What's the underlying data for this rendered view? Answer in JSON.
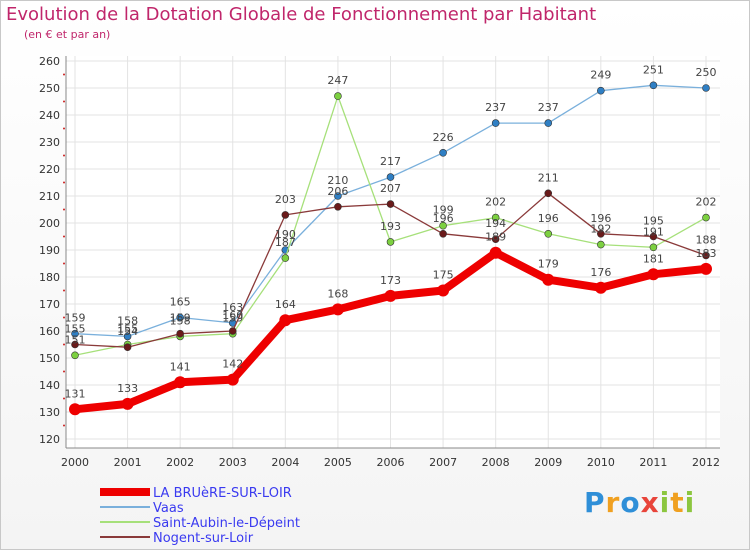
{
  "title": "Evolution de la Dotation Globale de Fonctionnement par Habitant",
  "subtitle": "(en € et par an)",
  "logo": {
    "text": "Proxiti",
    "colors": [
      "#2f8fd8",
      "#f0a020",
      "#2f8fd8",
      "#e8443a",
      "#8cc63f",
      "#f0a020",
      "#8cc63f"
    ]
  },
  "chart_data": {
    "type": "line",
    "title": "Evolution de la Dotation Globale de Fonctionnement par Habitant",
    "subtitle": "(en € et par an)",
    "x": [
      "2000",
      "2001",
      "2002",
      "2003",
      "2004",
      "2005",
      "2006",
      "2007",
      "2008",
      "2009",
      "2010",
      "2011",
      "2012"
    ],
    "ylim": [
      120,
      260
    ],
    "yticks": [
      120,
      130,
      140,
      150,
      160,
      170,
      180,
      190,
      200,
      210,
      220,
      230,
      240,
      250,
      260
    ],
    "grid": true,
    "legend": "bottom-left",
    "series": [
      {
        "name": "LA BRUèRE-SUR-LOIR",
        "color": "#ee0000",
        "marker": "#ee0000",
        "values": [
          131,
          133,
          141,
          142,
          164,
          168,
          173,
          175,
          189,
          179,
          176,
          181,
          183
        ],
        "labels": [
          "131",
          "133",
          "141",
          "142",
          "164",
          "168",
          "173",
          "175",
          "189",
          "179",
          "176",
          "181",
          "183"
        ]
      },
      {
        "name": "Vaas",
        "color": "#7ab0dc",
        "marker": "#2f7fc4",
        "values": [
          159,
          158,
          165,
          163,
          190,
          210,
          217,
          226,
          237,
          237,
          249,
          251,
          250
        ],
        "labels": [
          "159",
          "158",
          "165",
          "163",
          "190",
          "210",
          "217",
          "226",
          "237",
          "237",
          "249",
          "251",
          "250"
        ]
      },
      {
        "name": "Saint-Aubin-le-Dépeint",
        "color": "#a6e07a",
        "marker": "#7cd040",
        "values": [
          151,
          155,
          158,
          159,
          187,
          247,
          193,
          199,
          202,
          196,
          192,
          191,
          202
        ],
        "labels": [
          "151",
          "155",
          "158",
          "159",
          "187",
          "247",
          "193",
          "199",
          "202",
          "196",
          "192",
          "191",
          "202"
        ]
      },
      {
        "name": "Nogent-sur-Loir",
        "color": "#8a3a3a",
        "marker": "#6a1a1a",
        "values": [
          155,
          154,
          159,
          160,
          203,
          206,
          207,
          196,
          194,
          211,
          196,
          195,
          188
        ],
        "labels": [
          "155",
          "154",
          "159",
          "160",
          "203",
          "206",
          "207",
          "196",
          "194",
          "211",
          "196",
          "195",
          "188"
        ]
      }
    ]
  }
}
